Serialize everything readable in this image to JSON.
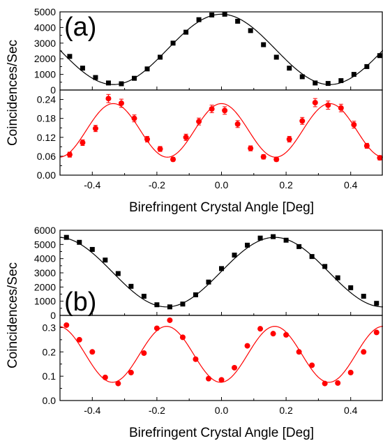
{
  "chart_data": [
    {
      "type": "scatter",
      "label": "(a)",
      "xlabel": "Birefringent Crystal Angle [Deg]",
      "ylabel": "Coincidences/Sec",
      "xlim": [
        -0.5,
        0.5
      ],
      "x_ticks": [
        -0.4,
        -0.2,
        0.0,
        0.2,
        0.4
      ],
      "x_tick_labels": [
        "-0.4",
        "-0.2",
        "0.0",
        "0.2",
        "0.4"
      ],
      "panels": [
        {
          "ylim": [
            0,
            5000
          ],
          "y_ticks": [
            0,
            1000,
            2000,
            3000,
            4000,
            5000
          ],
          "y_tick_labels": [
            "0",
            "1000",
            "2000",
            "3000",
            "4000",
            "5000"
          ],
          "series": [
            {
              "color": "#000000",
              "marker": "square",
              "x": [
                -0.47,
                -0.43,
                -0.39,
                -0.35,
                -0.31,
                -0.27,
                -0.23,
                -0.19,
                -0.15,
                -0.11,
                -0.07,
                -0.03,
                0.01,
                0.05,
                0.09,
                0.13,
                0.17,
                0.21,
                0.25,
                0.29,
                0.33,
                0.37,
                0.41,
                0.45,
                0.49
              ],
              "y": [
                2150,
                1400,
                800,
                450,
                400,
                750,
                1350,
                2100,
                3000,
                3700,
                4500,
                4800,
                4850,
                4400,
                3800,
                2900,
                2100,
                1400,
                850,
                450,
                420,
                600,
                1000,
                1500,
                2200
              ]
            }
          ],
          "fit": {
            "color": "#000000",
            "offset": 2600,
            "amplitude": 2250,
            "period": 0.67,
            "phase": 0.0
          }
        },
        {
          "ylim": [
            0,
            0.27
          ],
          "y_ticks": [
            0,
            0.06,
            0.12,
            0.18,
            0.24
          ],
          "y_tick_labels": [
            "0.00",
            "0.06",
            "0.12",
            "0.18",
            "0.24"
          ],
          "series": [
            {
              "color": "#ff0000",
              "marker": "circle",
              "x": [
                -0.47,
                -0.43,
                -0.39,
                -0.35,
                -0.31,
                -0.27,
                -0.23,
                -0.19,
                -0.15,
                -0.11,
                -0.07,
                -0.03,
                0.01,
                0.05,
                0.09,
                0.13,
                0.17,
                0.21,
                0.25,
                0.29,
                0.33,
                0.37,
                0.41,
                0.45,
                0.49
              ],
              "y": [
                0.065,
                0.103,
                0.148,
                0.243,
                0.228,
                0.18,
                0.114,
                0.083,
                0.05,
                0.12,
                0.17,
                0.21,
                0.205,
                0.162,
                0.085,
                0.058,
                0.05,
                0.114,
                0.172,
                0.23,
                0.222,
                0.213,
                0.16,
                0.093,
                0.055
              ],
              "err": [
                0.008,
                0.009,
                0.01,
                0.013,
                0.013,
                0.011,
                0.009,
                0.008,
                0.006,
                0.01,
                0.011,
                0.012,
                0.012,
                0.011,
                0.008,
                0.007,
                0.006,
                0.009,
                0.011,
                0.013,
                0.013,
                0.012,
                0.011,
                0.008,
                0.007
              ]
            }
          ],
          "fit": {
            "color": "#ff0000",
            "offset": 0.142,
            "amplitude": 0.085,
            "period": 0.335,
            "phase": 0.0
          }
        }
      ]
    },
    {
      "type": "scatter",
      "label": "(b)",
      "xlabel": "Birefringent Crystal Angle [Deg]",
      "ylabel": "Coincidences/Sec",
      "xlim": [
        -0.5,
        0.5
      ],
      "x_ticks": [
        -0.4,
        -0.2,
        0.0,
        0.2,
        0.4
      ],
      "x_tick_labels": [
        "-0.4",
        "-0.2",
        "0.0",
        "0.2",
        "0.4"
      ],
      "panels": [
        {
          "ylim": [
            0,
            6000
          ],
          "y_ticks": [
            0,
            1000,
            2000,
            3000,
            4000,
            5000,
            6000
          ],
          "y_tick_labels": [
            "0",
            "1000",
            "2000",
            "3000",
            "4000",
            "5000",
            "6000"
          ],
          "series": [
            {
              "color": "#000000",
              "marker": "square",
              "x": [
                -0.48,
                -0.44,
                -0.4,
                -0.36,
                -0.32,
                -0.28,
                -0.24,
                -0.2,
                -0.16,
                -0.12,
                -0.08,
                -0.04,
                0.0,
                0.04,
                0.08,
                0.12,
                0.16,
                0.2,
                0.24,
                0.28,
                0.32,
                0.36,
                0.4,
                0.44,
                0.48
              ],
              "y": [
                5500,
                5150,
                4650,
                3900,
                2950,
                2050,
                1350,
                750,
                600,
                800,
                1450,
                2350,
                3300,
                4250,
                4950,
                5450,
                5550,
                5300,
                4850,
                4150,
                3450,
                2650,
                1950,
                1350,
                850
              ]
            }
          ],
          "fit": {
            "color": "#000000",
            "offset": 3050,
            "amplitude": 2450,
            "period": 0.67,
            "phase": 0.165
          }
        },
        {
          "ylim": [
            0,
            0.35
          ],
          "y_ticks": [
            0.0,
            0.1,
            0.2,
            0.3
          ],
          "y_tick_labels": [
            "0.0",
            "0.1",
            "0.2",
            "0.3"
          ],
          "series": [
            {
              "color": "#ff0000",
              "marker": "circle",
              "x": [
                -0.48,
                -0.44,
                -0.4,
                -0.36,
                -0.32,
                -0.28,
                -0.24,
                -0.2,
                -0.16,
                -0.12,
                -0.08,
                -0.04,
                0.0,
                0.04,
                0.08,
                0.12,
                0.16,
                0.2,
                0.24,
                0.28,
                0.32,
                0.36,
                0.4,
                0.44,
                0.48
              ],
              "y": [
                0.31,
                0.25,
                0.2,
                0.095,
                0.07,
                0.115,
                0.195,
                0.297,
                0.33,
                0.26,
                0.17,
                0.09,
                0.085,
                0.135,
                0.225,
                0.295,
                0.275,
                0.27,
                0.2,
                0.145,
                0.07,
                0.072,
                0.115,
                0.2,
                0.28
              ]
            }
          ],
          "fit": {
            "color": "#ff0000",
            "offset": 0.19,
            "amplitude": 0.115,
            "period": 0.335,
            "phase": 0.165
          }
        }
      ]
    }
  ]
}
